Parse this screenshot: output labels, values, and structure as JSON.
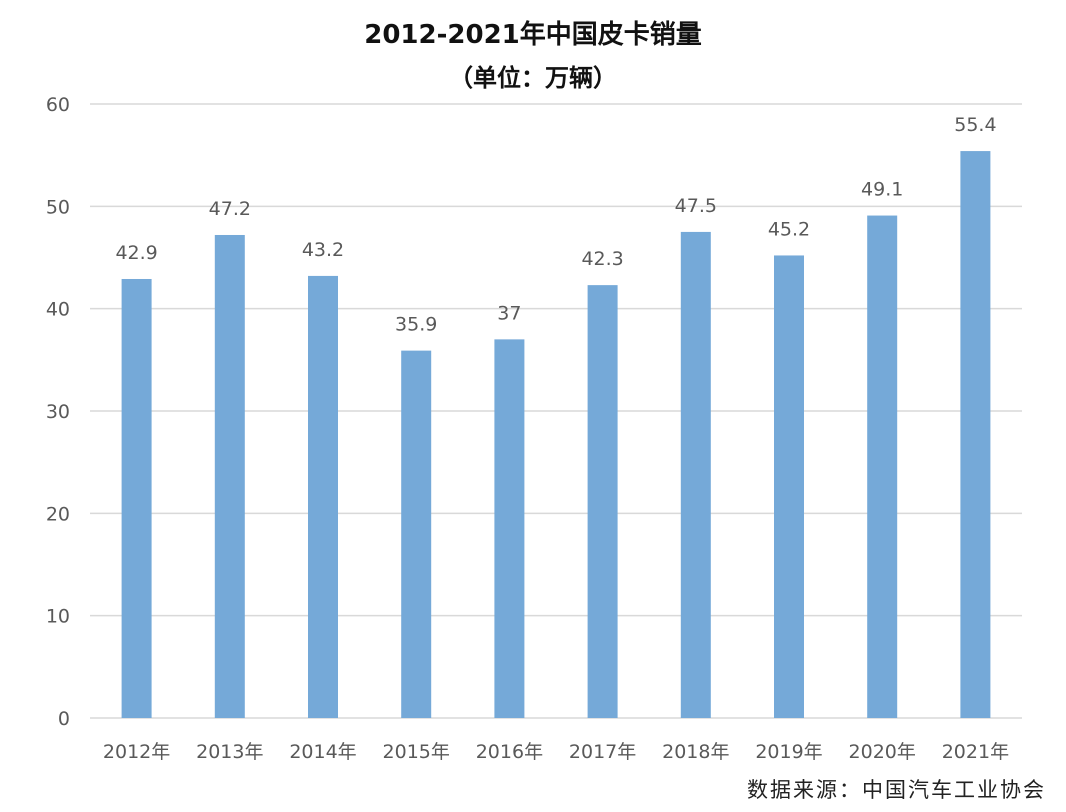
{
  "chart_data": {
    "type": "bar",
    "title": "2012-2021年中国皮卡销量",
    "subtitle": "（单位：万辆）",
    "categories": [
      "2012年",
      "2013年",
      "2014年",
      "2015年",
      "2016年",
      "2017年",
      "2018年",
      "2019年",
      "2020年",
      "2021年"
    ],
    "values": [
      42.9,
      47.2,
      43.2,
      35.9,
      37,
      42.3,
      47.5,
      45.2,
      49.1,
      55.4
    ],
    "data_labels": [
      "42.9",
      "47.2",
      "43.2",
      "35.9",
      "37",
      "42.3",
      "47.5",
      "45.2",
      "49.1",
      "55.4"
    ],
    "ylim": [
      0,
      60
    ],
    "yticks": [
      0,
      10,
      20,
      30,
      40,
      50,
      60
    ],
    "xlabel": "",
    "ylabel": "",
    "grid": true,
    "legend": "none",
    "bar_color": "#75A9D8",
    "grid_color": "#D9D9D9",
    "text_color": "#595959"
  },
  "source": "数据来源：中国汽车工业协会"
}
